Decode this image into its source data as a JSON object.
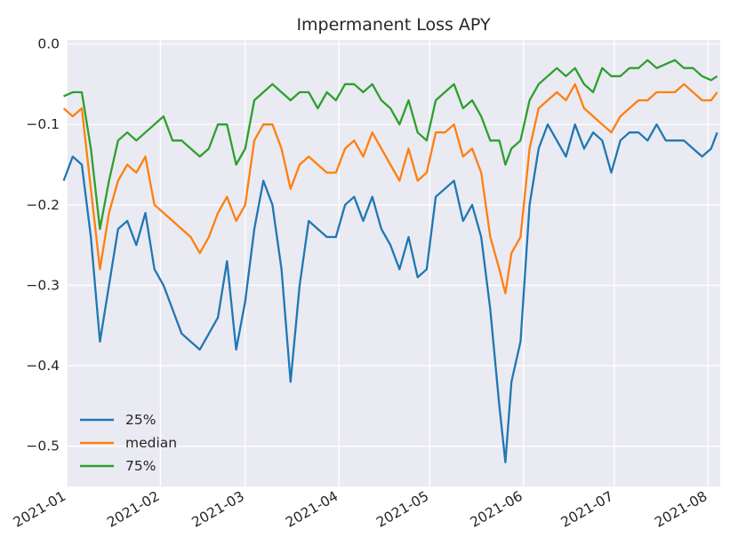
{
  "chart_data": {
    "type": "line",
    "title": "Impermanent Loss APY",
    "xlabel": "",
    "ylabel": "",
    "xlim": [
      "2021-01-01",
      "2021-08-05"
    ],
    "ylim": [
      -0.55,
      0.005
    ],
    "yticks": [
      0.0,
      -0.1,
      -0.2,
      -0.3,
      -0.4,
      -0.5
    ],
    "ytick_labels": [
      "0.0",
      "−0.1",
      "−0.2",
      "−0.3",
      "−0.4",
      "−0.5"
    ],
    "xticks": [
      "2021-01-01",
      "2021-02-01",
      "2021-03-01",
      "2021-04-01",
      "2021-05-01",
      "2021-06-01",
      "2021-07-01",
      "2021-08-01"
    ],
    "xtick_labels": [
      "2021-01",
      "2021-02",
      "2021-03",
      "2021-04",
      "2021-05",
      "2021-06",
      "2021-07",
      "2021-08"
    ],
    "grid": true,
    "legend_position": "lower-left",
    "colors": {
      "25%": "#1f77b4",
      "median": "#ff7f0e",
      "75%": "#2ca02c",
      "background": "#eaeaf2",
      "grid": "#ffffff"
    },
    "x": [
      "2020-12-31",
      "2021-01-03",
      "2021-01-06",
      "2021-01-09",
      "2021-01-12",
      "2021-01-15",
      "2021-01-18",
      "2021-01-21",
      "2021-01-24",
      "2021-01-27",
      "2021-01-30",
      "2021-02-02",
      "2021-02-05",
      "2021-02-08",
      "2021-02-11",
      "2021-02-14",
      "2021-02-17",
      "2021-02-20",
      "2021-02-23",
      "2021-02-26",
      "2021-03-01",
      "2021-03-04",
      "2021-03-07",
      "2021-03-10",
      "2021-03-13",
      "2021-03-16",
      "2021-03-19",
      "2021-03-22",
      "2021-03-25",
      "2021-03-28",
      "2021-03-31",
      "2021-04-03",
      "2021-04-06",
      "2021-04-09",
      "2021-04-12",
      "2021-04-15",
      "2021-04-18",
      "2021-04-21",
      "2021-04-24",
      "2021-04-27",
      "2021-04-30",
      "2021-05-03",
      "2021-05-06",
      "2021-05-09",
      "2021-05-12",
      "2021-05-15",
      "2021-05-18",
      "2021-05-21",
      "2021-05-24",
      "2021-05-26",
      "2021-05-28",
      "2021-05-31",
      "2021-06-03",
      "2021-06-06",
      "2021-06-09",
      "2021-06-12",
      "2021-06-15",
      "2021-06-18",
      "2021-06-21",
      "2021-06-24",
      "2021-06-27",
      "2021-06-30",
      "2021-07-03",
      "2021-07-06",
      "2021-07-09",
      "2021-07-12",
      "2021-07-15",
      "2021-07-18",
      "2021-07-21",
      "2021-07-24",
      "2021-07-27",
      "2021-07-30",
      "2021-08-02",
      "2021-08-04"
    ],
    "series": [
      {
        "name": "25%",
        "values": [
          -0.17,
          -0.14,
          -0.15,
          -0.24,
          -0.37,
          -0.3,
          -0.23,
          -0.22,
          -0.25,
          -0.21,
          -0.28,
          -0.3,
          -0.33,
          -0.36,
          -0.37,
          -0.38,
          -0.36,
          -0.34,
          -0.27,
          -0.38,
          -0.32,
          -0.23,
          -0.17,
          -0.2,
          -0.28,
          -0.42,
          -0.3,
          -0.22,
          -0.23,
          -0.24,
          -0.24,
          -0.2,
          -0.19,
          -0.22,
          -0.19,
          -0.23,
          -0.25,
          -0.28,
          -0.24,
          -0.29,
          -0.28,
          -0.19,
          -0.18,
          -0.17,
          -0.22,
          -0.2,
          -0.24,
          -0.33,
          -0.45,
          -0.52,
          -0.42,
          -0.37,
          -0.2,
          -0.13,
          -0.1,
          -0.12,
          -0.14,
          -0.1,
          -0.13,
          -0.11,
          -0.12,
          -0.16,
          -0.12,
          -0.11,
          -0.11,
          -0.12,
          -0.1,
          -0.12,
          -0.12,
          -0.12,
          -0.13,
          -0.14,
          -0.13,
          -0.11
        ]
      },
      {
        "name": "median",
        "values": [
          -0.08,
          -0.09,
          -0.08,
          -0.18,
          -0.28,
          -0.21,
          -0.17,
          -0.15,
          -0.16,
          -0.14,
          -0.2,
          -0.21,
          -0.22,
          -0.23,
          -0.24,
          -0.26,
          -0.24,
          -0.21,
          -0.19,
          -0.22,
          -0.2,
          -0.12,
          -0.1,
          -0.1,
          -0.13,
          -0.18,
          -0.15,
          -0.14,
          -0.15,
          -0.16,
          -0.16,
          -0.13,
          -0.12,
          -0.14,
          -0.11,
          -0.13,
          -0.15,
          -0.17,
          -0.13,
          -0.17,
          -0.16,
          -0.11,
          -0.11,
          -0.1,
          -0.14,
          -0.13,
          -0.16,
          -0.24,
          -0.28,
          -0.31,
          -0.26,
          -0.24,
          -0.13,
          -0.08,
          -0.07,
          -0.06,
          -0.07,
          -0.05,
          -0.08,
          -0.09,
          -0.1,
          -0.11,
          -0.09,
          -0.08,
          -0.07,
          -0.07,
          -0.06,
          -0.06,
          -0.06,
          -0.05,
          -0.06,
          -0.07,
          -0.07,
          -0.06
        ]
      },
      {
        "name": "75%",
        "values": [
          -0.065,
          -0.06,
          -0.06,
          -0.13,
          -0.23,
          -0.17,
          -0.12,
          -0.11,
          -0.12,
          -0.11,
          -0.1,
          -0.09,
          -0.12,
          -0.12,
          -0.13,
          -0.14,
          -0.13,
          -0.1,
          -0.1,
          -0.15,
          -0.13,
          -0.07,
          -0.06,
          -0.05,
          -0.06,
          -0.07,
          -0.06,
          -0.06,
          -0.08,
          -0.06,
          -0.07,
          -0.05,
          -0.05,
          -0.06,
          -0.05,
          -0.07,
          -0.08,
          -0.1,
          -0.07,
          -0.11,
          -0.12,
          -0.07,
          -0.06,
          -0.05,
          -0.08,
          -0.07,
          -0.09,
          -0.12,
          -0.12,
          -0.15,
          -0.13,
          -0.12,
          -0.07,
          -0.05,
          -0.04,
          -0.03,
          -0.04,
          -0.03,
          -0.05,
          -0.06,
          -0.03,
          -0.04,
          -0.04,
          -0.03,
          -0.03,
          -0.02,
          -0.03,
          -0.025,
          -0.02,
          -0.03,
          -0.03,
          -0.04,
          -0.045,
          -0.04
        ]
      }
    ]
  }
}
